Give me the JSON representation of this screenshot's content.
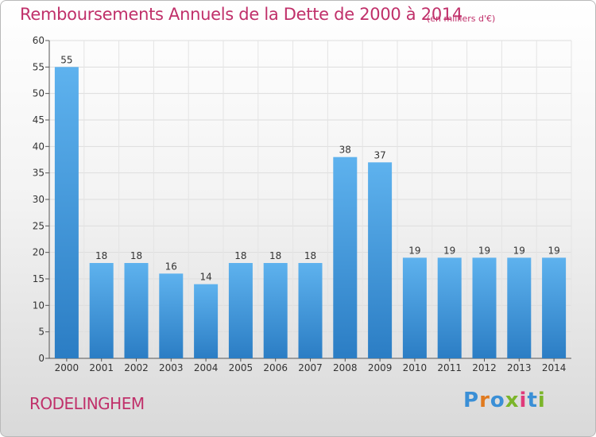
{
  "chart_data": {
    "type": "bar",
    "title": "Remboursements Annuels de la Dette de 2000 à 2014",
    "subtitle": "(en milliers d'€)",
    "categories": [
      "2000",
      "2001",
      "2002",
      "2003",
      "2004",
      "2005",
      "2006",
      "2007",
      "2008",
      "2009",
      "2010",
      "2011",
      "2012",
      "2013",
      "2014"
    ],
    "values": [
      55,
      18,
      18,
      16,
      14,
      18,
      18,
      18,
      38,
      37,
      19,
      19,
      19,
      19,
      19
    ],
    "ylim": [
      0,
      60
    ],
    "yticks": [
      0,
      5,
      10,
      15,
      20,
      25,
      30,
      35,
      40,
      45,
      50,
      55,
      60
    ],
    "grid": true,
    "xlabel": "",
    "ylabel": "",
    "bar_color": "#3a8fd6"
  },
  "footer": {
    "town": "RODELINGHEM",
    "logo": "Proxiti"
  }
}
